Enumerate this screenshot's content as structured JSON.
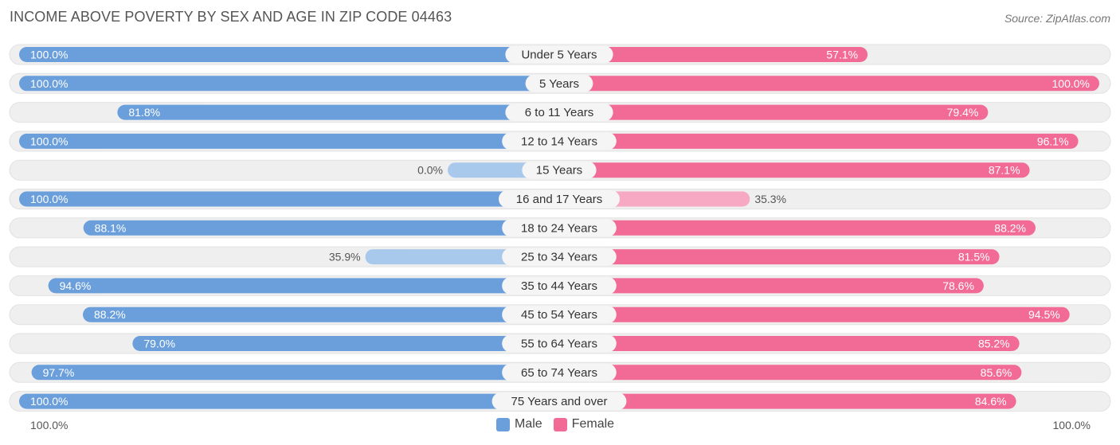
{
  "title": "INCOME ABOVE POVERTY BY SEX AND AGE IN ZIP CODE 04463",
  "source": "Source: ZipAtlas.com",
  "footer": {
    "left": "100.0%",
    "right": "100.0%"
  },
  "legend": {
    "male": "Male",
    "female": "Female"
  },
  "colors": {
    "male": "#6a9fdc",
    "male_light": "#a8c8ec",
    "female": "#f26b96",
    "female_light": "#f7a8c2",
    "row_bg": "#efefef"
  },
  "chart_data": {
    "type": "bar",
    "orientation": "horizontal-diverging",
    "categories": [
      "Under 5 Years",
      "5 Years",
      "6 to 11 Years",
      "12 to 14 Years",
      "15 Years",
      "16 and 17 Years",
      "18 to 24 Years",
      "25 to 34 Years",
      "35 to 44 Years",
      "45 to 54 Years",
      "55 to 64 Years",
      "65 to 74 Years",
      "75 Years and over"
    ],
    "series": [
      {
        "name": "Male",
        "values": [
          100.0,
          100.0,
          81.8,
          100.0,
          0.0,
          100.0,
          88.1,
          35.9,
          94.6,
          88.2,
          79.0,
          97.7,
          100.0
        ],
        "labels": [
          "100.0%",
          "100.0%",
          "81.8%",
          "100.0%",
          "0.0%",
          "100.0%",
          "88.1%",
          "35.9%",
          "94.6%",
          "88.2%",
          "79.0%",
          "97.7%",
          "100.0%"
        ]
      },
      {
        "name": "Female",
        "values": [
          57.1,
          100.0,
          79.4,
          96.1,
          87.1,
          35.3,
          88.2,
          81.5,
          78.6,
          94.5,
          85.2,
          85.6,
          84.6
        ],
        "labels": [
          "57.1%",
          "100.0%",
          "79.4%",
          "96.1%",
          "87.1%",
          "35.3%",
          "88.2%",
          "81.5%",
          "78.6%",
          "94.5%",
          "85.2%",
          "85.6%",
          "84.6%"
        ]
      }
    ],
    "xlim": [
      0,
      100
    ],
    "legend_position": "bottom-center"
  }
}
